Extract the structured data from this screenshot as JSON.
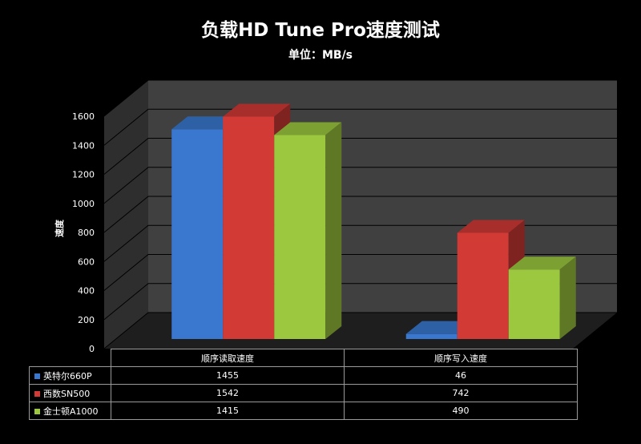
{
  "chart_data": {
    "type": "bar",
    "title": "负载HD Tune Pro速度测试",
    "subtitle": "单位：MB/s",
    "ylabel": "速度",
    "xlabel": "",
    "ylim": [
      0,
      1600
    ],
    "yticks": [
      "0",
      "200",
      "400",
      "600",
      "800",
      "1000",
      "1200",
      "1400",
      "1600"
    ],
    "categories": [
      "顺序读取速度",
      "顺序写入速度"
    ],
    "series": [
      {
        "name": "英特尔660P",
        "values": [
          1455,
          46
        ],
        "color": "#3a78d0"
      },
      {
        "name": "西数SN500",
        "values": [
          1542,
          742
        ],
        "color": "#d23a36"
      },
      {
        "name": "金士顿A1000",
        "values": [
          1415,
          490
        ],
        "color": "#9cc83f"
      }
    ],
    "grid": true,
    "legend": "data-table"
  }
}
